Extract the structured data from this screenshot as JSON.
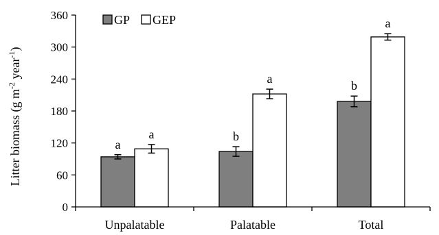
{
  "chart_data": {
    "type": "bar",
    "categories": [
      "Unpalatable",
      "Palatable",
      "Total"
    ],
    "series": [
      {
        "name": "GP",
        "color": "#7f7f7f",
        "values": [
          94,
          104,
          198
        ],
        "errors": [
          4,
          9,
          10
        ],
        "letters": [
          "a",
          "b",
          "b"
        ]
      },
      {
        "name": "GEP",
        "color": "#ffffff",
        "values": [
          109,
          212,
          319
        ],
        "errors": [
          8,
          9,
          6
        ],
        "letters": [
          "a",
          "a",
          "a"
        ]
      }
    ],
    "ylabel_main": "Litter biomass (g m",
    "ylabel_sup1": "-2",
    "ylabel_mid": " year",
    "ylabel_sup2": "-1",
    "ylabel_end": ")",
    "ylim": [
      0,
      360
    ],
    "yticks": [
      0,
      60,
      120,
      180,
      240,
      300,
      360
    ],
    "legend_position": "top-left",
    "grid": false
  }
}
